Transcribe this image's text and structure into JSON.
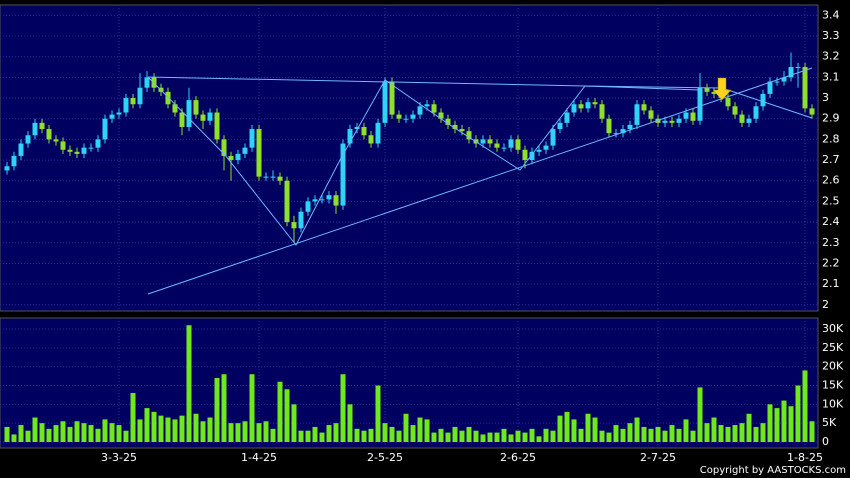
{
  "chart_data": {
    "type": "candlestick",
    "categories": [
      null,
      null,
      null,
      null,
      null,
      null,
      null,
      null,
      null,
      null,
      null,
      null,
      null,
      null,
      null,
      null,
      "3-3-25",
      null,
      null,
      null,
      null,
      null,
      null,
      null,
      null,
      null,
      null,
      null,
      null,
      null,
      null,
      null,
      null,
      null,
      null,
      null,
      "1-4-25",
      null,
      null,
      null,
      null,
      null,
      null,
      null,
      null,
      null,
      null,
      null,
      null,
      null,
      null,
      null,
      null,
      null,
      "2-5-25",
      null,
      null,
      null,
      null,
      null,
      null,
      null,
      null,
      null,
      null,
      null,
      null,
      null,
      null,
      null,
      null,
      null,
      null,
      "2-6-25",
      null,
      null,
      null,
      null,
      null,
      null,
      null,
      null,
      null,
      null,
      null,
      null,
      null,
      null,
      null,
      null,
      null,
      null,
      null,
      "2-7-25",
      null,
      null,
      null,
      null,
      null,
      null,
      null,
      null,
      null,
      null,
      null,
      null,
      null,
      null,
      null,
      null,
      null,
      null,
      null,
      null,
      "1-8-25",
      null
    ],
    "open": [
      2.65,
      2.67,
      2.72,
      2.78,
      2.82,
      2.88,
      2.85,
      2.8,
      2.79,
      2.75,
      2.74,
      2.73,
      2.76,
      2.76,
      2.8,
      2.9,
      2.92,
      2.93,
      3.0,
      2.97,
      3.05,
      3.1,
      3.05,
      3.03,
      2.97,
      2.93,
      2.86,
      2.99,
      2.92,
      2.89,
      2.93,
      2.8,
      2.72,
      2.7,
      2.73,
      2.76,
      2.85,
      2.62,
      2.62,
      2.62,
      2.6,
      2.4,
      2.37,
      2.45,
      2.5,
      2.51,
      2.51,
      2.53,
      2.48,
      2.78,
      2.85,
      2.86,
      2.82,
      2.78,
      2.88,
      3.08,
      2.92,
      2.9,
      2.9,
      2.92,
      2.96,
      2.97,
      2.93,
      2.9,
      2.87,
      2.85,
      2.84,
      2.8,
      2.78,
      2.8,
      2.78,
      2.76,
      2.76,
      2.8,
      2.75,
      2.7,
      2.74,
      2.75,
      2.77,
      2.85,
      2.88,
      2.93,
      2.97,
      2.95,
      2.98,
      2.97,
      2.9,
      2.83,
      2.83,
      2.85,
      2.87,
      2.97,
      2.94,
      2.9,
      2.88,
      2.89,
      2.88,
      2.9,
      2.93,
      2.89,
      3.05,
      3.03,
      3.02,
      3.0,
      2.96,
      2.92,
      2.88,
      2.9,
      2.96,
      3.02,
      3.08,
      3.08,
      3.1,
      3.15,
      3.15,
      2.95
    ],
    "high": [
      2.69,
      2.74,
      2.8,
      2.84,
      2.9,
      2.9,
      2.87,
      2.82,
      2.81,
      2.77,
      2.76,
      2.78,
      2.78,
      2.82,
      2.92,
      2.94,
      2.95,
      3.02,
      3.02,
      3.12,
      3.13,
      3.12,
      3.07,
      3.05,
      2.99,
      2.95,
      3.05,
      3.01,
      2.94,
      2.95,
      2.95,
      2.82,
      2.74,
      2.75,
      2.78,
      2.87,
      2.87,
      2.64,
      2.65,
      2.64,
      2.62,
      2.43,
      2.47,
      2.52,
      2.53,
      2.53,
      2.55,
      2.55,
      2.8,
      2.87,
      2.88,
      2.88,
      2.84,
      2.9,
      3.1,
      3.1,
      2.94,
      2.92,
      2.94,
      2.98,
      2.99,
      2.99,
      2.95,
      2.92,
      2.89,
      2.87,
      2.86,
      2.82,
      2.82,
      2.82,
      2.8,
      2.78,
      2.82,
      2.82,
      2.77,
      2.76,
      2.77,
      2.79,
      2.87,
      2.9,
      2.95,
      2.99,
      2.99,
      3.0,
      3.0,
      2.99,
      2.92,
      2.85,
      2.87,
      2.89,
      2.99,
      2.99,
      2.96,
      2.92,
      2.91,
      2.91,
      2.92,
      2.95,
      2.95,
      3.12,
      3.07,
      3.05,
      3.04,
      3.02,
      2.98,
      2.94,
      2.92,
      2.98,
      3.04,
      3.1,
      3.1,
      3.13,
      3.22,
      3.17,
      3.17,
      2.97
    ],
    "low": [
      2.63,
      2.65,
      2.7,
      2.76,
      2.8,
      2.83,
      2.78,
      2.77,
      2.73,
      2.72,
      2.71,
      2.71,
      2.74,
      2.74,
      2.78,
      2.88,
      2.9,
      2.91,
      2.95,
      2.95,
      3.03,
      3.03,
      3.01,
      2.95,
      2.91,
      2.82,
      2.84,
      2.9,
      2.85,
      2.87,
      2.78,
      2.65,
      2.6,
      2.68,
      2.71,
      2.74,
      2.6,
      2.6,
      2.6,
      2.58,
      2.38,
      2.3,
      2.35,
      2.43,
      2.48,
      2.49,
      2.49,
      2.44,
      2.46,
      2.76,
      2.83,
      2.8,
      2.76,
      2.76,
      2.86,
      2.9,
      2.88,
      2.88,
      2.88,
      2.9,
      2.94,
      2.91,
      2.88,
      2.85,
      2.83,
      2.82,
      2.78,
      2.76,
      2.76,
      2.76,
      2.74,
      2.74,
      2.74,
      2.73,
      2.66,
      2.68,
      2.72,
      2.73,
      2.75,
      2.83,
      2.86,
      2.91,
      2.93,
      2.93,
      2.95,
      2.88,
      2.81,
      2.81,
      2.81,
      2.83,
      2.85,
      2.92,
      2.88,
      2.86,
      2.86,
      2.86,
      2.86,
      2.88,
      2.87,
      2.87,
      3.01,
      3.0,
      2.98,
      2.94,
      2.9,
      2.86,
      2.86,
      2.88,
      2.94,
      3.0,
      3.06,
      3.06,
      3.08,
      3.05,
      2.93,
      2.9
    ],
    "close": [
      2.67,
      2.72,
      2.78,
      2.82,
      2.88,
      2.85,
      2.8,
      2.79,
      2.75,
      2.74,
      2.73,
      2.76,
      2.76,
      2.8,
      2.9,
      2.92,
      2.93,
      3.0,
      2.97,
      3.05,
      3.1,
      3.05,
      3.03,
      2.97,
      2.93,
      2.86,
      2.99,
      2.92,
      2.89,
      2.93,
      2.8,
      2.72,
      2.7,
      2.73,
      2.76,
      2.85,
      2.62,
      2.62,
      2.62,
      2.6,
      2.4,
      2.37,
      2.45,
      2.5,
      2.51,
      2.51,
      2.53,
      2.48,
      2.78,
      2.85,
      2.86,
      2.82,
      2.78,
      2.88,
      3.08,
      2.92,
      2.9,
      2.9,
      2.92,
      2.96,
      2.97,
      2.93,
      2.9,
      2.87,
      2.85,
      2.84,
      2.8,
      2.78,
      2.8,
      2.78,
      2.76,
      2.76,
      2.8,
      2.75,
      2.7,
      2.74,
      2.75,
      2.77,
      2.85,
      2.88,
      2.93,
      2.97,
      2.95,
      2.98,
      2.97,
      2.9,
      2.83,
      2.83,
      2.85,
      2.87,
      2.97,
      2.94,
      2.9,
      2.88,
      2.89,
      2.88,
      2.9,
      2.93,
      2.89,
      3.05,
      3.03,
      3.02,
      3.0,
      2.96,
      2.92,
      2.88,
      2.9,
      2.96,
      3.02,
      3.08,
      3.08,
      3.1,
      3.15,
      3.15,
      2.95,
      2.92
    ],
    "volume": [
      4000,
      2000,
      4500,
      3000,
      6500,
      5000,
      3500,
      4500,
      5500,
      4000,
      5500,
      5000,
      4500,
      3500,
      6000,
      5000,
      4500,
      3000,
      13000,
      6000,
      9000,
      8000,
      7000,
      6500,
      6000,
      7000,
      31000,
      7500,
      5500,
      6500,
      17000,
      18000,
      5000,
      5000,
      5500,
      18000,
      5000,
      5500,
      3500,
      16000,
      14000,
      10000,
      3000,
      3000,
      4000,
      2500,
      4500,
      5000,
      18000,
      10000,
      3500,
      3000,
      3500,
      15000,
      5000,
      4000,
      3000,
      7500,
      4500,
      6500,
      6000,
      2500,
      3500,
      2500,
      4000,
      3000,
      4000,
      3000,
      2000,
      2500,
      2500,
      3500,
      2000,
      3000,
      2500,
      3500,
      1500,
      3500,
      3000,
      7000,
      8000,
      6000,
      3500,
      7500,
      6500,
      3000,
      2500,
      4500,
      3500,
      5000,
      6500,
      4000,
      3500,
      4000,
      3000,
      4500,
      3500,
      6000,
      3000,
      14500,
      5000,
      6500,
      4500,
      4000,
      4500,
      5000,
      7500,
      4000,
      5000,
      10000,
      9000,
      11000,
      9500,
      15000,
      19000,
      5500
    ],
    "up_color": "#2ed3f5",
    "down_color": "#8ee02a",
    "volume_color": "#6fe81c",
    "ylim": [
      1.97,
      3.45
    ],
    "yticks": [
      2,
      2.1,
      2.2,
      2.3,
      2.4,
      2.5,
      2.6,
      2.7,
      2.8,
      2.9,
      3,
      3.1,
      3.2,
      3.3,
      3.4
    ],
    "y2lim": [
      0,
      32000
    ],
    "y2ticks": [
      0,
      {
        "value": 5000,
        "label": "5K"
      },
      {
        "value": 10000,
        "label": "10K"
      },
      {
        "value": 15000,
        "label": "15K"
      },
      {
        "value": 20000,
        "label": "20K"
      },
      {
        "value": 25000,
        "label": "25K"
      },
      {
        "value": 30000,
        "label": "30K"
      }
    ],
    "grid": true,
    "copyright": "Copyright by AASTOCKS.com"
  }
}
